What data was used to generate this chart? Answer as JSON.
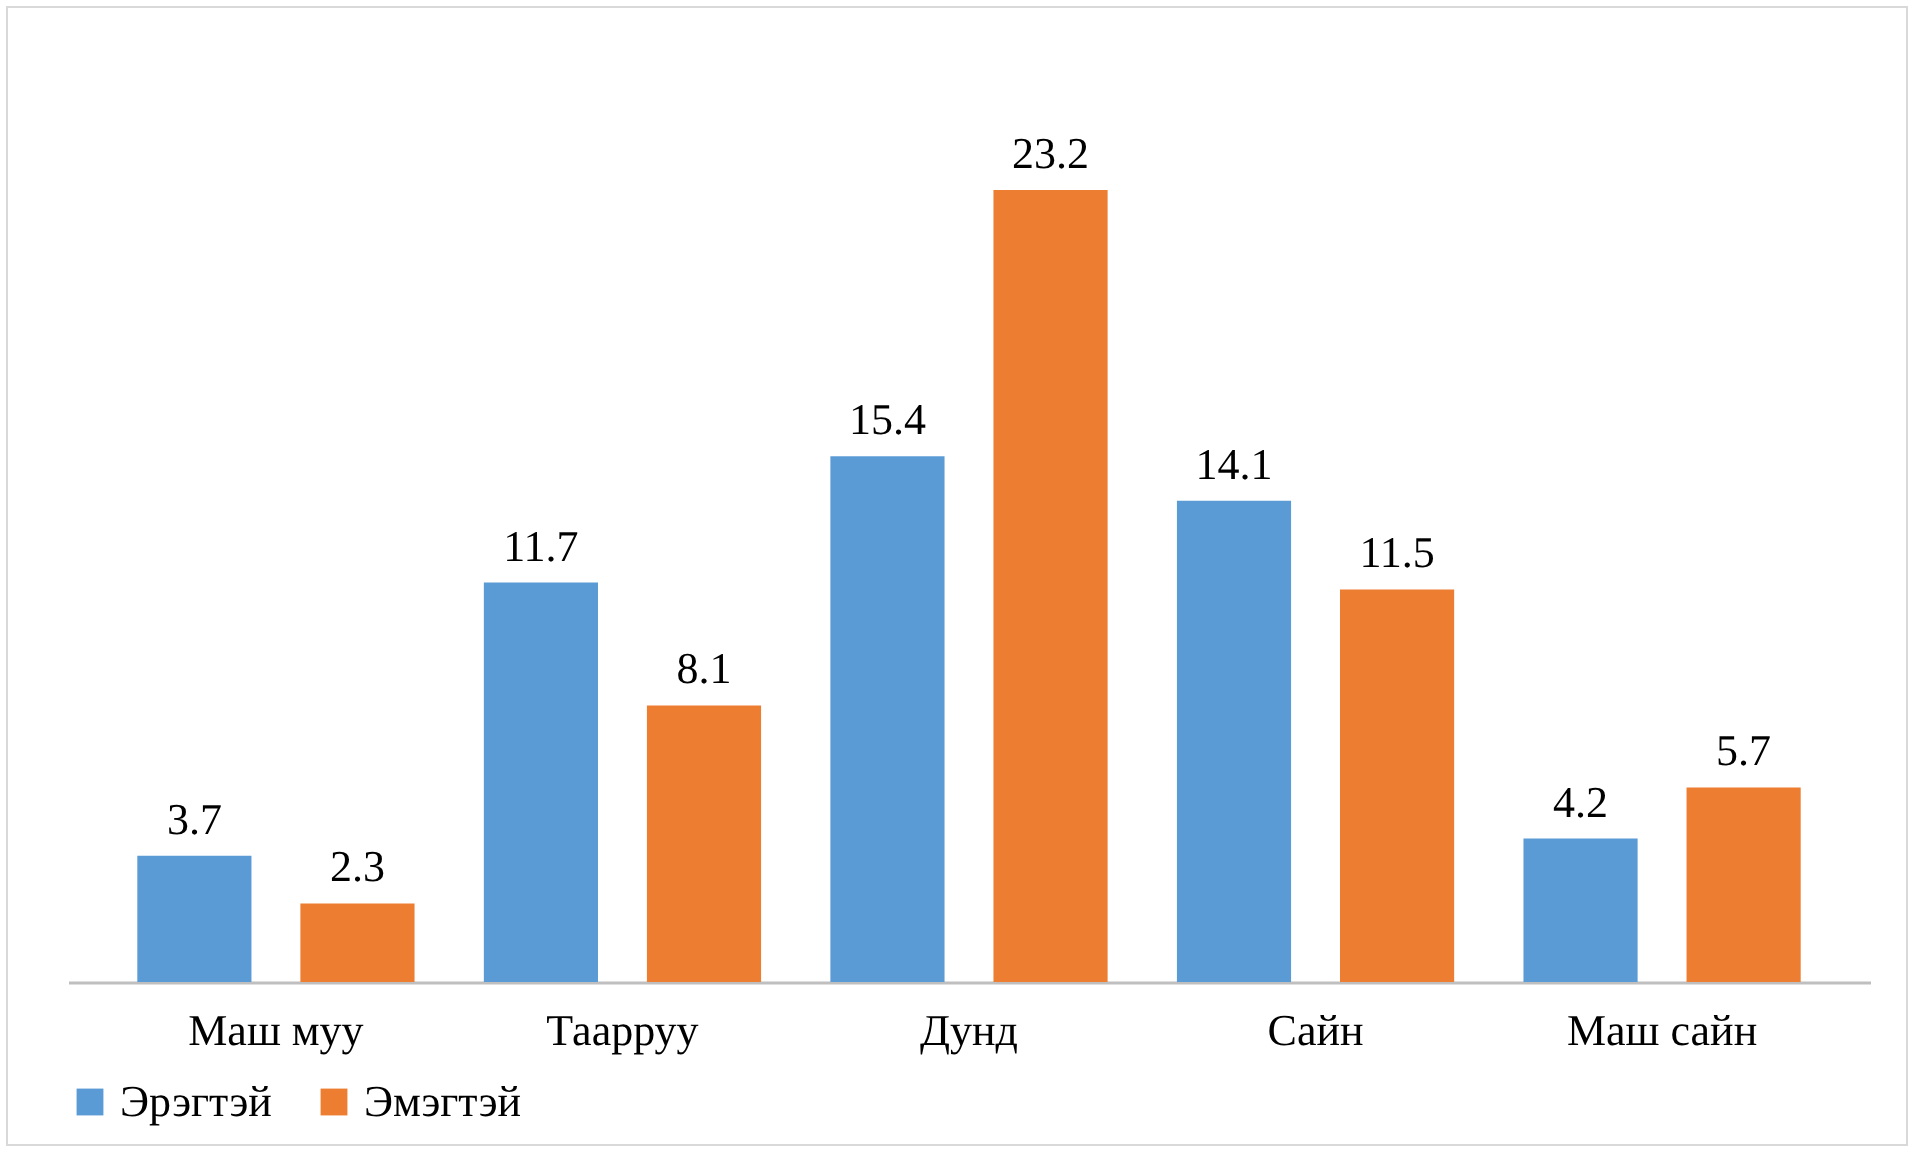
{
  "chart_data": {
    "type": "bar",
    "categories": [
      "Маш муу",
      "Таарруу",
      "Дунд",
      "Сайн",
      "Маш сайн"
    ],
    "series": [
      {
        "name": "Эрэгтэй",
        "color": "#5b9bd5",
        "values": [
          3.7,
          11.7,
          15.4,
          14.1,
          4.2
        ]
      },
      {
        "name": "Эмэгтэй",
        "color": "#ed7d31",
        "values": [
          2.3,
          8.1,
          23.2,
          11.5,
          5.7
        ]
      }
    ],
    "data_labels": true,
    "legend": "bottom",
    "grid": false
  }
}
